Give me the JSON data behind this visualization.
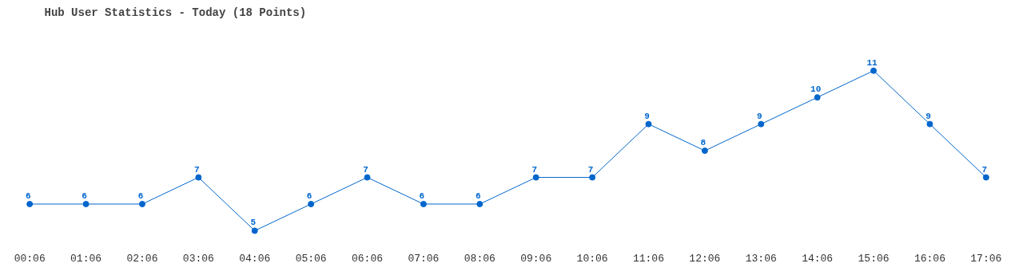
{
  "chart_data": {
    "type": "line",
    "title": "Hub User Statistics - Today (18 Points)",
    "categories": [
      "00:06",
      "01:06",
      "02:06",
      "03:06",
      "04:06",
      "05:06",
      "06:06",
      "07:06",
      "08:06",
      "09:06",
      "10:06",
      "11:06",
      "12:06",
      "13:06",
      "14:06",
      "15:06",
      "16:06",
      "17:06"
    ],
    "series": [
      {
        "color": "#0066cc",
        "values": [
          6,
          6,
          6,
          7,
          5,
          6,
          7,
          6,
          6,
          7,
          7,
          9,
          8,
          9,
          10,
          11,
          9,
          7
        ]
      }
    ],
    "data_labels": true,
    "marker": "circle",
    "line_style": "solid"
  }
}
